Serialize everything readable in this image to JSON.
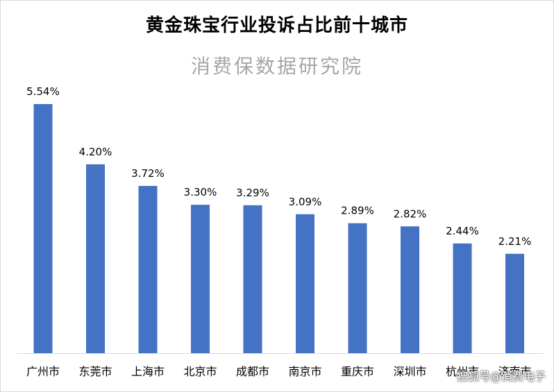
{
  "title": "黄金珠宝行业投诉占比前十城市",
  "subtitle": "消费保数据研究院",
  "watermark": "搜狐号@消费电子",
  "colors": {
    "bar": "#4472c4",
    "axis": "#d9d9d9",
    "text": "#000000",
    "subtitle": "#a6a6a6"
  },
  "chart_data": {
    "type": "bar",
    "title": "黄金珠宝行业投诉占比前十城市",
    "subtitle": "消费保数据研究院",
    "categories": [
      "广州市",
      "东莞市",
      "上海市",
      "北京市",
      "成都市",
      "南京市",
      "重庆市",
      "深圳市",
      "杭州市",
      "济南市"
    ],
    "values": [
      5.54,
      4.2,
      3.72,
      3.3,
      3.29,
      3.09,
      2.89,
      2.82,
      2.44,
      2.21
    ],
    "data_labels": [
      "5.54%",
      "4.20%",
      "3.72%",
      "3.30%",
      "3.29%",
      "3.09%",
      "2.89%",
      "2.82%",
      "2.44%",
      "2.21%"
    ],
    "unit": "%",
    "xlabel": "",
    "ylabel": "",
    "ylim": [
      0,
      6
    ],
    "grid": false,
    "legend": "none"
  }
}
